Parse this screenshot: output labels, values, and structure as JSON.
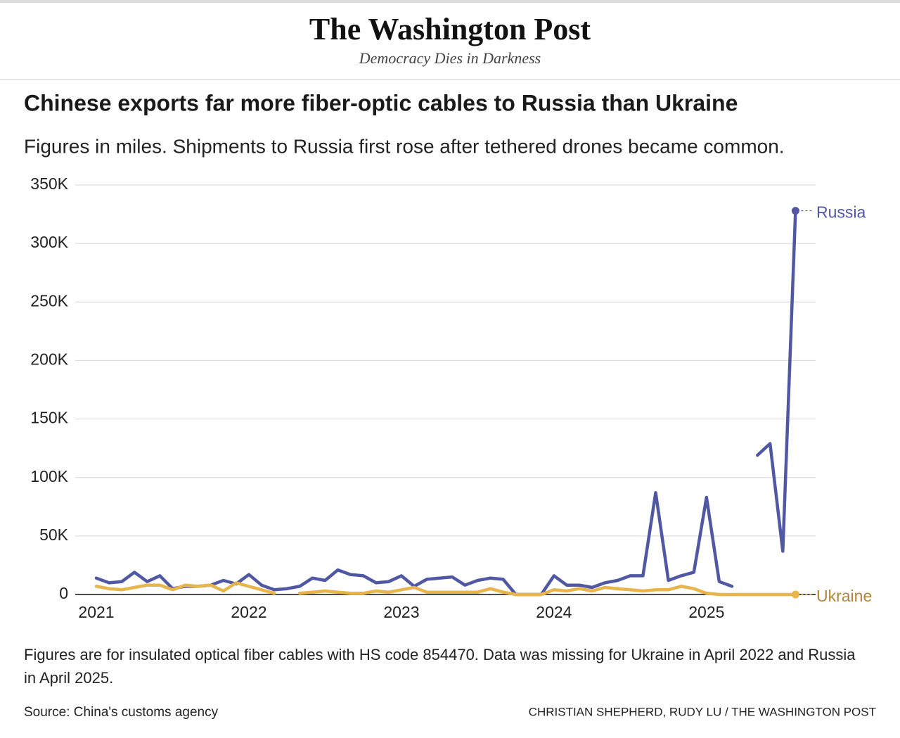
{
  "header": {
    "logo": "The Washington Post",
    "tagline": "Democracy Dies in Darkness"
  },
  "chart_data": {
    "type": "line",
    "title": "Chinese exports far more fiber-optic cables to Russia than Ukraine",
    "subtitle": "Figures in miles. Shipments to Russia first rose after tethered drones became common.",
    "note": "Figures are for insulated optical fiber cables with HS code 854470. Data was missing for Ukraine in April 2022 and Russia in April 2025.",
    "source": "Source: China's customs agency",
    "credit": "CHRISTIAN SHEPHERD, RUDY LU / THE WASHINGTON POST",
    "categories": [
      "2021",
      null,
      null,
      null,
      null,
      null,
      null,
      null,
      null,
      null,
      null,
      null,
      "2022",
      null,
      null,
      null,
      null,
      null,
      null,
      null,
      null,
      null,
      null,
      null,
      "2023",
      null,
      null,
      null,
      null,
      null,
      null,
      null,
      null,
      null,
      null,
      null,
      "2024",
      null,
      null,
      null,
      null,
      null,
      null,
      null,
      null,
      null,
      null,
      null,
      "2025",
      null,
      null,
      null,
      null,
      null,
      null,
      null
    ],
    "series": [
      {
        "name": "Russia",
        "color": "#5158a3",
        "values": [
          14000,
          10000,
          11000,
          19000,
          11000,
          16000,
          5000,
          7000,
          7000,
          8000,
          12000,
          9000,
          17000,
          8000,
          4000,
          5000,
          7000,
          14000,
          12000,
          21000,
          17000,
          16000,
          10000,
          11000,
          16000,
          7000,
          13000,
          14000,
          15000,
          8000,
          12000,
          14000,
          13000,
          0,
          0,
          0,
          16000,
          8000,
          8000,
          6000,
          10000,
          12000,
          16000,
          16000,
          87000,
          12000,
          16000,
          19000,
          83000,
          11000,
          7000,
          null,
          119000,
          129000,
          37000,
          328000
        ]
      },
      {
        "name": "Ukraine",
        "color": "#e8b54d",
        "values": [
          7000,
          5000,
          4000,
          6000,
          8000,
          8000,
          4000,
          8000,
          7000,
          8000,
          3000,
          10000,
          7000,
          4000,
          1000,
          null,
          1000,
          2000,
          3000,
          2000,
          1000,
          1000,
          3000,
          2000,
          4000,
          6000,
          2000,
          2000,
          2000,
          2000,
          2000,
          5000,
          2000,
          0,
          0,
          0,
          4000,
          3000,
          5000,
          3000,
          6000,
          5000,
          4000,
          3000,
          4000,
          4000,
          7000,
          5000,
          1000,
          0,
          0,
          0,
          0,
          0,
          0,
          0
        ]
      }
    ],
    "ylim": [
      0,
      350000
    ],
    "yticks": [
      0,
      {
        "value": 50000,
        "label": "50K"
      },
      {
        "value": 100000,
        "label": "100K"
      },
      {
        "value": 150000,
        "label": "150K"
      },
      {
        "value": 200000,
        "label": "200K"
      },
      {
        "value": 250000,
        "label": "250K"
      },
      {
        "value": 300000,
        "label": "300K"
      },
      {
        "value": 350000,
        "label": "350K"
      }
    ],
    "grid": true
  }
}
